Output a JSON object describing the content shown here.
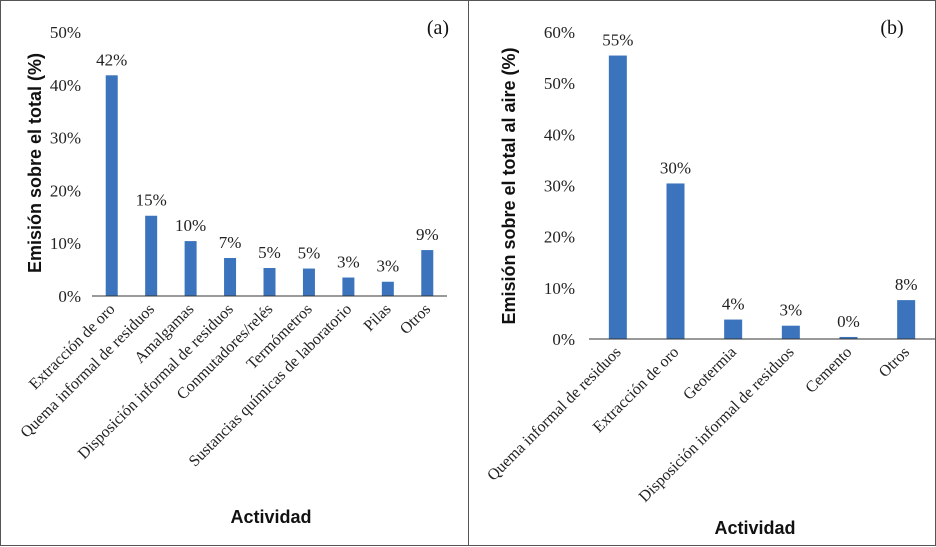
{
  "chart_data": [
    {
      "type": "bar",
      "panel_label": "(a)",
      "categories": [
        "Extracción de oro",
        "Quema informal de residuos",
        "Amalgamas",
        "Disposición informal de residuos",
        "Conmutadores/relés",
        "Termómetros",
        "Sustancias químicas de laboratorio",
        "Pilas",
        "Otros"
      ],
      "values": [
        42,
        15,
        10,
        7,
        5,
        5,
        3,
        3,
        9
      ],
      "plot_values": [
        41.8,
        15.2,
        10.4,
        7.2,
        5.3,
        5.2,
        3.5,
        2.7,
        8.7
      ],
      "data_labels": [
        "42%",
        "15%",
        "10%",
        "7%",
        "5%",
        "5%",
        "3%",
        "3%",
        "9%"
      ],
      "yticks": [
        "0%",
        "10%",
        "20%",
        "30%",
        "40%",
        "50%"
      ],
      "ylim": [
        0,
        50
      ],
      "ylabel": "Emisión sobre el total (%)",
      "xlabel": "Actividad",
      "color": "#3b74bd",
      "grid": false
    },
    {
      "type": "bar",
      "panel_label": "(b)",
      "categories": [
        "Quema informal de residuos",
        "Extracción de oro",
        "Geotermia",
        "Disposición informal de residuos",
        "Cemento",
        "Otros"
      ],
      "values": [
        55,
        30,
        4,
        3,
        0,
        8
      ],
      "plot_values": [
        55.4,
        30.4,
        3.8,
        2.6,
        0.4,
        7.6
      ],
      "data_labels": [
        "55%",
        "30%",
        "4%",
        "3%",
        "0%",
        "8%"
      ],
      "yticks": [
        "0%",
        "10%",
        "20%",
        "30%",
        "40%",
        "50%",
        "60%"
      ],
      "ylim": [
        0,
        60
      ],
      "ylabel": "Emisión sobre el total al aire (%)",
      "xlabel": "Actividad",
      "color": "#3b74bd",
      "grid": false
    }
  ]
}
